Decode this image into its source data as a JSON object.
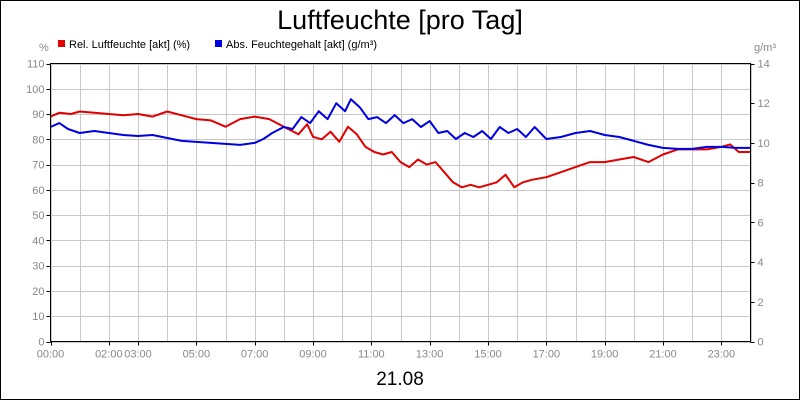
{
  "chart_data": {
    "type": "line",
    "title": "Luftfeuchte [pro Tag]",
    "xlabel": "21.08",
    "y_unit_left": "%",
    "y_unit_right": "g/m³",
    "ylim_left": [
      0,
      110
    ],
    "ylim_right": [
      0,
      14
    ],
    "yticks_left": [
      "0",
      "10",
      "20",
      "30",
      "40",
      "50",
      "60",
      "70",
      "80",
      "90",
      "100",
      "110"
    ],
    "yticks_right": [
      "0",
      "2",
      "4",
      "6",
      "8",
      "10",
      "12",
      "14"
    ],
    "xlim_hours": [
      0,
      24
    ],
    "xticks": [
      {
        "h": 0,
        "label": "00:00"
      },
      {
        "h": 2,
        "label": "02:00"
      },
      {
        "h": 3,
        "label": "03:00"
      },
      {
        "h": 5,
        "label": "05:00"
      },
      {
        "h": 7,
        "label": "07:00"
      },
      {
        "h": 9,
        "label": "09:00"
      },
      {
        "h": 11,
        "label": "11:00"
      },
      {
        "h": 13,
        "label": "13:00"
      },
      {
        "h": 15,
        "label": "15:00"
      },
      {
        "h": 17,
        "label": "17:00"
      },
      {
        "h": 19,
        "label": "19:00"
      },
      {
        "h": 21,
        "label": "21:00"
      },
      {
        "h": 23,
        "label": "23:00"
      }
    ],
    "grid": true,
    "legend_position": "top-left",
    "series": [
      {
        "name": "Rel. Luftfeuchte [akt] (%)",
        "axis": "left",
        "color": "#e00000",
        "points": [
          [
            0,
            89
          ],
          [
            0.3,
            90.5
          ],
          [
            0.7,
            90
          ],
          [
            1,
            91
          ],
          [
            1.5,
            90.5
          ],
          [
            2,
            90
          ],
          [
            2.5,
            89.5
          ],
          [
            3,
            90
          ],
          [
            3.5,
            89
          ],
          [
            4,
            91
          ],
          [
            4.5,
            89.5
          ],
          [
            5,
            88
          ],
          [
            5.5,
            87.5
          ],
          [
            6,
            85
          ],
          [
            6.5,
            88
          ],
          [
            7,
            89
          ],
          [
            7.5,
            88
          ],
          [
            8,
            85
          ],
          [
            8.5,
            82
          ],
          [
            8.8,
            86
          ],
          [
            9,
            81
          ],
          [
            9.3,
            80
          ],
          [
            9.6,
            83
          ],
          [
            9.9,
            79
          ],
          [
            10.2,
            85
          ],
          [
            10.5,
            82
          ],
          [
            10.8,
            77
          ],
          [
            11.1,
            75
          ],
          [
            11.4,
            74
          ],
          [
            11.7,
            75
          ],
          [
            12,
            71
          ],
          [
            12.3,
            69
          ],
          [
            12.6,
            72
          ],
          [
            12.9,
            70
          ],
          [
            13.2,
            71
          ],
          [
            13.5,
            67
          ],
          [
            13.8,
            63
          ],
          [
            14.1,
            61
          ],
          [
            14.4,
            62
          ],
          [
            14.7,
            61
          ],
          [
            15,
            62
          ],
          [
            15.3,
            63
          ],
          [
            15.6,
            66
          ],
          [
            15.9,
            61
          ],
          [
            16.2,
            63
          ],
          [
            16.5,
            64
          ],
          [
            17,
            65
          ],
          [
            17.5,
            67
          ],
          [
            18,
            69
          ],
          [
            18.5,
            71
          ],
          [
            19,
            71
          ],
          [
            19.5,
            72
          ],
          [
            20,
            73
          ],
          [
            20.5,
            71
          ],
          [
            21,
            74
          ],
          [
            21.5,
            76
          ],
          [
            22,
            76
          ],
          [
            22.5,
            76
          ],
          [
            23,
            77
          ],
          [
            23.3,
            78
          ],
          [
            23.6,
            75
          ],
          [
            24,
            75
          ]
        ]
      },
      {
        "name": "Abs. Feuchtegehalt [akt] (g/m³)",
        "axis": "right",
        "color": "#0000e0",
        "points": [
          [
            0,
            10.8
          ],
          [
            0.3,
            11.0
          ],
          [
            0.6,
            10.7
          ],
          [
            1,
            10.5
          ],
          [
            1.5,
            10.6
          ],
          [
            2,
            10.5
          ],
          [
            2.5,
            10.4
          ],
          [
            3,
            10.35
          ],
          [
            3.5,
            10.4
          ],
          [
            4,
            10.25
          ],
          [
            4.5,
            10.1
          ],
          [
            5,
            10.05
          ],
          [
            5.5,
            10.0
          ],
          [
            6,
            9.95
          ],
          [
            6.5,
            9.9
          ],
          [
            7,
            10.0
          ],
          [
            7.3,
            10.2
          ],
          [
            7.6,
            10.5
          ],
          [
            8,
            10.8
          ],
          [
            8.3,
            10.7
          ],
          [
            8.6,
            11.3
          ],
          [
            8.9,
            11.0
          ],
          [
            9.2,
            11.6
          ],
          [
            9.5,
            11.2
          ],
          [
            9.8,
            12.0
          ],
          [
            10.1,
            11.6
          ],
          [
            10.3,
            12.2
          ],
          [
            10.6,
            11.8
          ],
          [
            10.9,
            11.2
          ],
          [
            11.2,
            11.3
          ],
          [
            11.5,
            11.0
          ],
          [
            11.8,
            11.4
          ],
          [
            12.1,
            11.0
          ],
          [
            12.4,
            11.2
          ],
          [
            12.7,
            10.8
          ],
          [
            13,
            11.1
          ],
          [
            13.3,
            10.5
          ],
          [
            13.6,
            10.6
          ],
          [
            13.9,
            10.2
          ],
          [
            14.2,
            10.5
          ],
          [
            14.5,
            10.3
          ],
          [
            14.8,
            10.6
          ],
          [
            15.1,
            10.2
          ],
          [
            15.4,
            10.8
          ],
          [
            15.7,
            10.5
          ],
          [
            16,
            10.7
          ],
          [
            16.3,
            10.3
          ],
          [
            16.6,
            10.8
          ],
          [
            17,
            10.2
          ],
          [
            17.5,
            10.3
          ],
          [
            18,
            10.5
          ],
          [
            18.5,
            10.6
          ],
          [
            19,
            10.4
          ],
          [
            19.5,
            10.3
          ],
          [
            20,
            10.1
          ],
          [
            20.5,
            9.9
          ],
          [
            21,
            9.75
          ],
          [
            21.5,
            9.7
          ],
          [
            22,
            9.7
          ],
          [
            22.5,
            9.8
          ],
          [
            23,
            9.8
          ],
          [
            23.5,
            9.75
          ],
          [
            24,
            9.75
          ]
        ]
      }
    ]
  }
}
